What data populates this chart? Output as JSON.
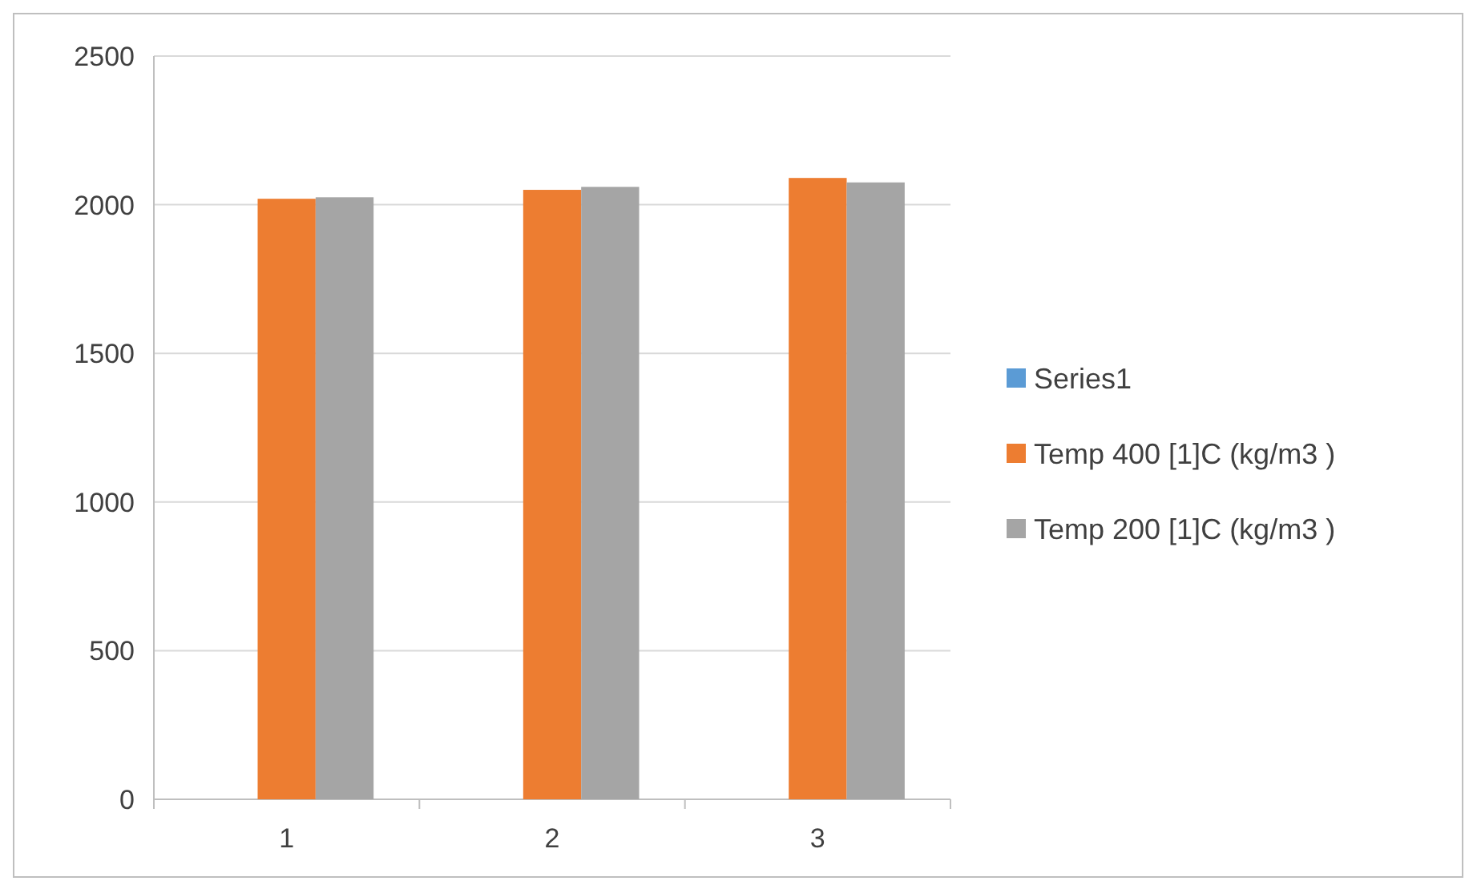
{
  "chart_data": {
    "type": "bar",
    "categories": [
      "1",
      "2",
      "3"
    ],
    "series": [
      {
        "name": "Series1",
        "color": "#5b9bd5",
        "values": [
          null,
          null,
          null
        ]
      },
      {
        "name": "Temp 400 [1]C (kg/m3 )",
        "color": "#ed7d31",
        "values": [
          2020,
          2050,
          2090
        ]
      },
      {
        "name": "Temp 200 [1]C (kg/m3 )",
        "color": "#a5a5a5",
        "values": [
          2025,
          2060,
          2075
        ]
      }
    ],
    "ylim": [
      0,
      2500
    ],
    "yticks": [
      0,
      500,
      1000,
      1500,
      2000,
      2500
    ],
    "grid": "y",
    "legend": "right"
  }
}
